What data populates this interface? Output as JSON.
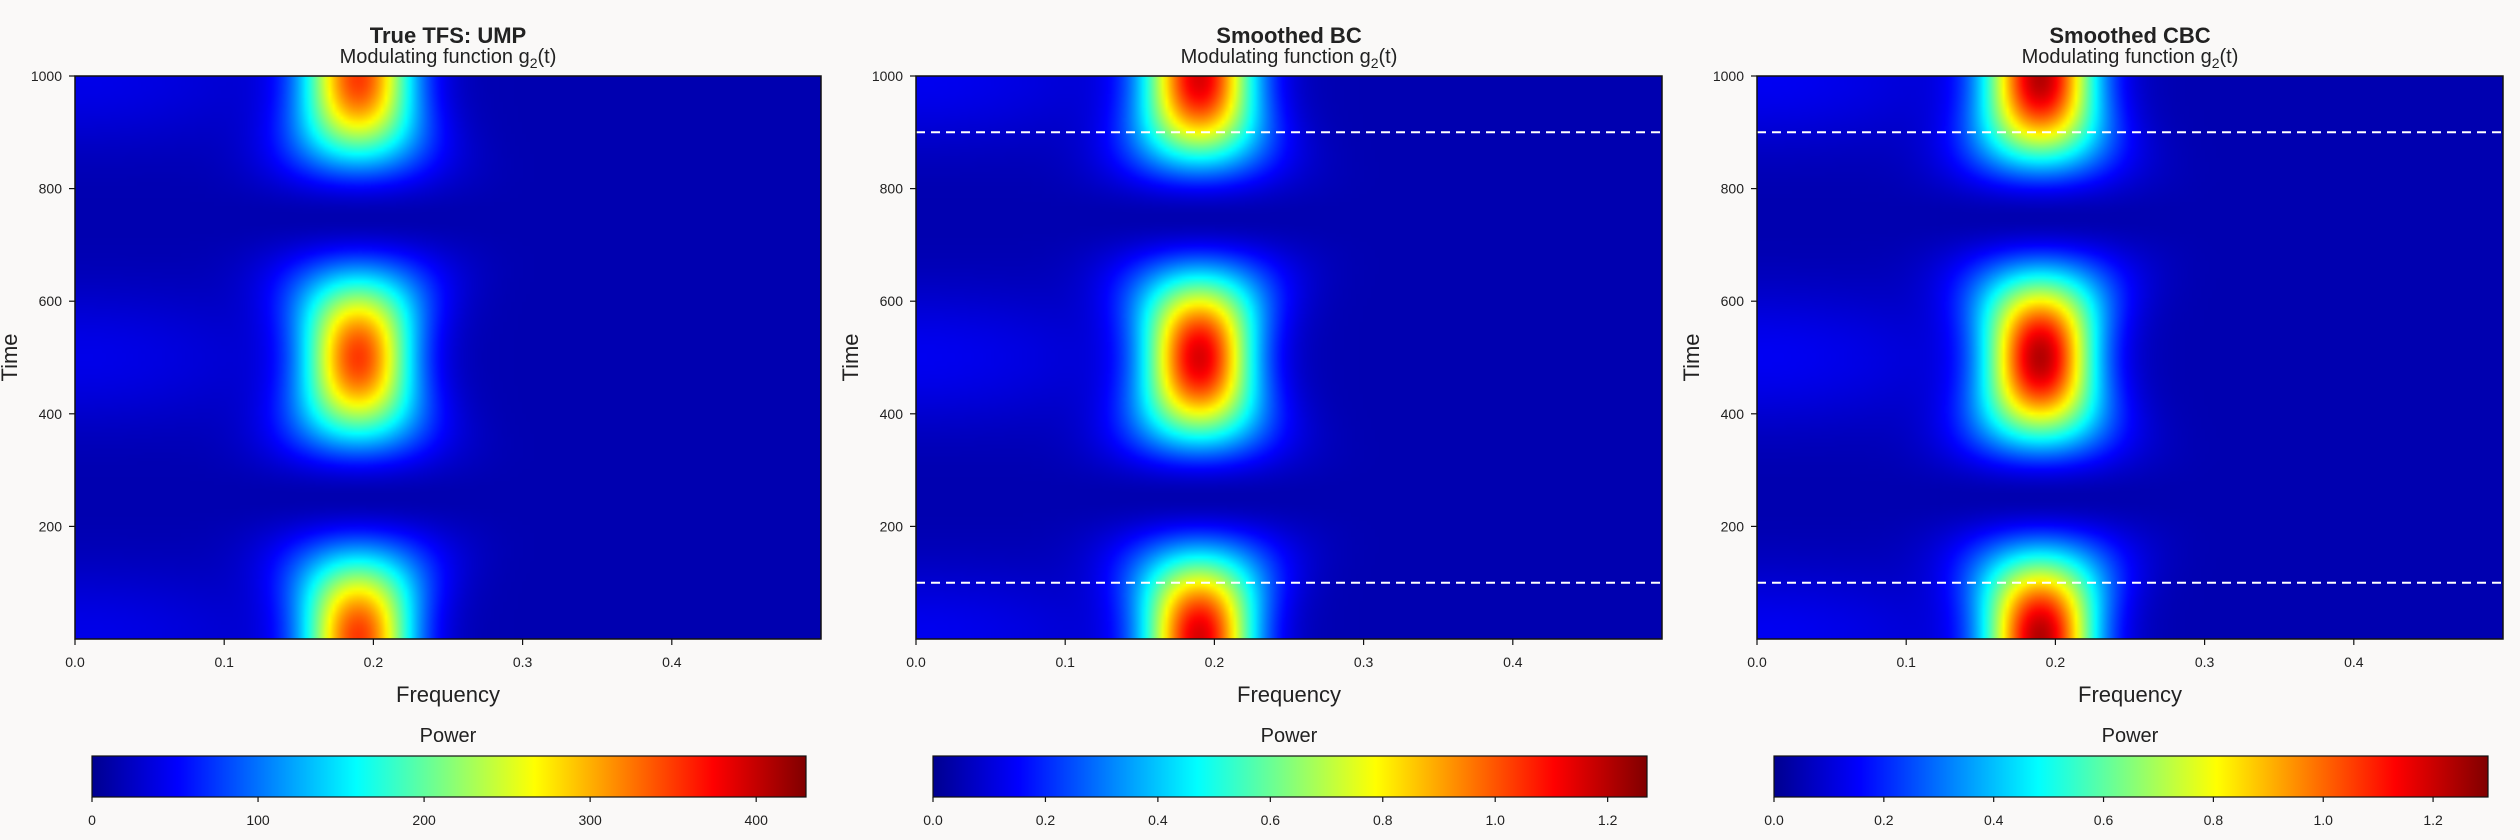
{
  "chart_data": [
    {
      "type": "heatmap",
      "title": "True TFS: UMP",
      "subtitle_main": "Modulating function g",
      "subtitle_sub": "2",
      "subtitle_tail": "(t)",
      "xlabel": "Frequency",
      "ylabel": "Time",
      "xlim": [
        0,
        0.5
      ],
      "ylim": [
        0,
        1000
      ],
      "x_ticks": [
        "0.0",
        "0.1",
        "0.2",
        "0.3",
        "0.4"
      ],
      "y_ticks": [
        "200",
        "400",
        "600",
        "800",
        "1000"
      ],
      "peak_frequency": 0.19,
      "peak_power": 420,
      "dashed_lines": [],
      "colorbar": {
        "label": "Power",
        "range": [
          0,
          430
        ],
        "ticks": [
          "0",
          "100",
          "200",
          "300",
          "400"
        ]
      }
    },
    {
      "type": "heatmap",
      "title": "Smoothed BC",
      "subtitle_main": "Modulating function g",
      "subtitle_sub": "2",
      "subtitle_tail": "(t)",
      "xlabel": "Frequency",
      "ylabel": "Time",
      "xlim": [
        0,
        0.5
      ],
      "ylim": [
        0,
        1000
      ],
      "x_ticks": [
        "0.0",
        "0.1",
        "0.2",
        "0.3",
        "0.4"
      ],
      "y_ticks": [
        "200",
        "400",
        "600",
        "800",
        "1000"
      ],
      "peak_frequency": 0.19,
      "peak_power": 1.25,
      "dashed_lines": [
        100,
        900
      ],
      "colorbar": {
        "label": "Power",
        "range": [
          0,
          1.27
        ],
        "ticks": [
          "0.0",
          "0.2",
          "0.4",
          "0.6",
          "0.8",
          "1.0",
          "1.2"
        ]
      }
    },
    {
      "type": "heatmap",
      "title": "Smoothed CBC",
      "subtitle_main": "Modulating function g",
      "subtitle_sub": "2",
      "subtitle_tail": "(t)",
      "xlabel": "Frequency",
      "ylabel": "Time",
      "xlim": [
        0,
        0.5
      ],
      "ylim": [
        0,
        1000
      ],
      "x_ticks": [
        "0.0",
        "0.1",
        "0.2",
        "0.3",
        "0.4"
      ],
      "y_ticks": [
        "200",
        "400",
        "600",
        "800",
        "1000"
      ],
      "peak_frequency": 0.19,
      "peak_power": 1.15,
      "dashed_lines": [
        100,
        900
      ],
      "colorbar": {
        "label": "Power",
        "range": [
          0,
          1.3
        ],
        "ticks": [
          "0.0",
          "0.2",
          "0.4",
          "0.6",
          "0.8",
          "1.0",
          "1.2"
        ]
      }
    }
  ]
}
